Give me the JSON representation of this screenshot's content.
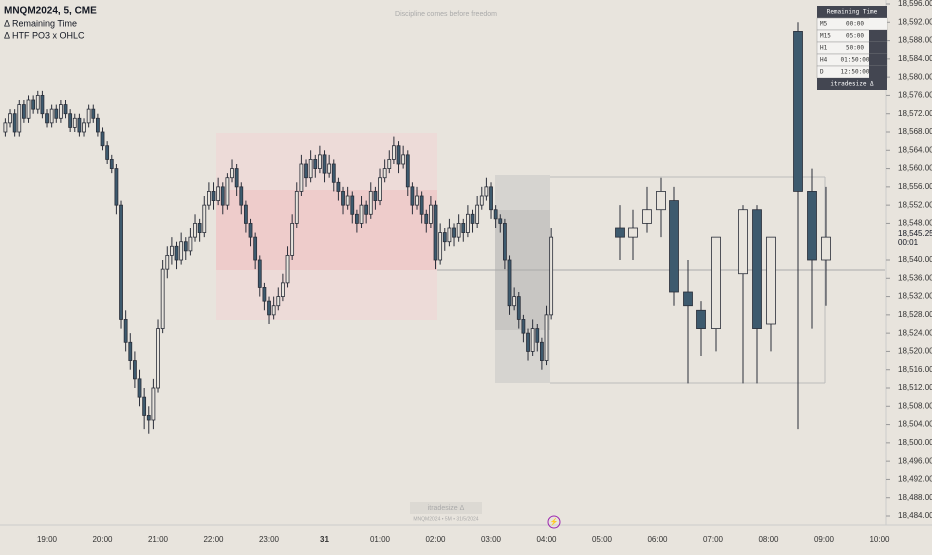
{
  "chart_data": {
    "type": "candlestick",
    "title": "MNQM2024, 5, CME",
    "indicators": [
      "Δ Remaining Time",
      "Δ HTF PO3 x OHLC"
    ],
    "watermark": "Discipline comes before freedom",
    "footer_brand": "itradesize Δ",
    "footer_info": "MNQM2024 • 5M • 31/5/2024",
    "current_price_label": "18,545.25",
    "countdown": "00:01",
    "ylim": [
      18484,
      18596
    ],
    "yticks": [
      {
        "value": 18596,
        "label": "18,596.00"
      },
      {
        "value": 18592,
        "label": "18,592.00"
      },
      {
        "value": 18588,
        "label": "18,588.00"
      },
      {
        "value": 18584,
        "label": "18,584.00"
      },
      {
        "value": 18580,
        "label": "18,580.00"
      },
      {
        "value": 18576,
        "label": "18,576.00"
      },
      {
        "value": 18572,
        "label": "18,572.00"
      },
      {
        "value": 18568,
        "label": "18,568.00"
      },
      {
        "value": 18564,
        "label": "18,564.00"
      },
      {
        "value": 18560,
        "label": "18,560.00"
      },
      {
        "value": 18556,
        "label": "18,556.00"
      },
      {
        "value": 18552,
        "label": "18,552.00"
      },
      {
        "value": 18548,
        "label": "18,548.00"
      },
      {
        "value": 18540,
        "label": "18,540.00"
      },
      {
        "value": 18536,
        "label": "18,536.00"
      },
      {
        "value": 18532,
        "label": "18,532.00"
      },
      {
        "value": 18528,
        "label": "18,528.00"
      },
      {
        "value": 18524,
        "label": "18,524.00"
      },
      {
        "value": 18520,
        "label": "18,520.00"
      },
      {
        "value": 18516,
        "label": "18,516.00"
      },
      {
        "value": 18512,
        "label": "18,512.00"
      },
      {
        "value": 18508,
        "label": "18,508.00"
      },
      {
        "value": 18504,
        "label": "18,504.00"
      },
      {
        "value": 18500,
        "label": "18,500.00"
      },
      {
        "value": 18496,
        "label": "18,496.00"
      },
      {
        "value": 18492,
        "label": "18,492.00"
      },
      {
        "value": 18488,
        "label": "18,488.00"
      },
      {
        "value": 18484,
        "label": "18,484.00"
      }
    ],
    "xticks": [
      "19:00",
      "20:00",
      "21:00",
      "22:00",
      "23:00",
      "31",
      "01:00",
      "02:00",
      "03:00",
      "04:00",
      "05:00",
      "06:00",
      "07:00",
      "08:00",
      "09:00",
      "10:00"
    ],
    "colors": {
      "up": "#e8e4dd",
      "down": "#3d5a6e",
      "wick": "#2a2e39"
    },
    "candles": [
      [
        18568,
        18571,
        18567,
        18570
      ],
      [
        18570,
        18573,
        18569,
        18572
      ],
      [
        18572,
        18573,
        18567,
        18568
      ],
      [
        18568,
        18575,
        18567,
        18574
      ],
      [
        18574,
        18575,
        18570,
        18571
      ],
      [
        18571,
        18576,
        18570,
        18575
      ],
      [
        18575,
        18576,
        18572,
        18573
      ],
      [
        18573,
        18577,
        18572,
        18576
      ],
      [
        18576,
        18577,
        18571,
        18572
      ],
      [
        18572,
        18573,
        18569,
        18570
      ],
      [
        18570,
        18574,
        18569,
        18573
      ],
      [
        18573,
        18574,
        18570,
        18571
      ],
      [
        18571,
        18575,
        18570,
        18574
      ],
      [
        18574,
        18575,
        18571,
        18572
      ],
      [
        18572,
        18573,
        18568,
        18569
      ],
      [
        18569,
        18572,
        18568,
        18571
      ],
      [
        18571,
        18572,
        18567,
        18568
      ],
      [
        18568,
        18571,
        18567,
        18570
      ],
      [
        18570,
        18574,
        18569,
        18573
      ],
      [
        18573,
        18574,
        18570,
        18571
      ],
      [
        18571,
        18572,
        18567,
        18568
      ],
      [
        18568,
        18569,
        18564,
        18565
      ],
      [
        18565,
        18566,
        18561,
        18562
      ],
      [
        18562,
        18563,
        18559,
        18560
      ],
      [
        18560,
        18561,
        18550,
        18552
      ],
      [
        18552,
        18553,
        18525,
        18527
      ],
      [
        18527,
        18529,
        18520,
        18522
      ],
      [
        18522,
        18524,
        18516,
        18518
      ],
      [
        18518,
        18520,
        18512,
        18514
      ],
      [
        18514,
        18516,
        18508,
        18510
      ],
      [
        18510,
        18512,
        18503,
        18506
      ],
      [
        18506,
        18508,
        18502,
        18505
      ],
      [
        18505,
        18514,
        18503,
        18512
      ],
      [
        18512,
        18527,
        18511,
        18525
      ],
      [
        18525,
        18540,
        18524,
        18538
      ],
      [
        18538,
        18543,
        18536,
        18541
      ],
      [
        18541,
        18545,
        18539,
        18543
      ],
      [
        18543,
        18544,
        18538,
        18540
      ],
      [
        18540,
        18546,
        18539,
        18544
      ],
      [
        18544,
        18545,
        18540,
        18542
      ],
      [
        18542,
        18547,
        18541,
        18545
      ],
      [
        18545,
        18550,
        18544,
        18548
      ],
      [
        18548,
        18549,
        18544,
        18546
      ],
      [
        18546,
        18554,
        18545,
        18552
      ],
      [
        18552,
        18557,
        18551,
        18555
      ],
      [
        18555,
        18557,
        18551,
        18553
      ],
      [
        18553,
        18558,
        18552,
        18556
      ],
      [
        18556,
        18557,
        18550,
        18552
      ],
      [
        18552,
        18559,
        18551,
        18558
      ],
      [
        18558,
        18562,
        18557,
        18560
      ],
      [
        18560,
        18561,
        18554,
        18556
      ],
      [
        18556,
        18557,
        18550,
        18552
      ],
      [
        18552,
        18553,
        18546,
        18548
      ],
      [
        18548,
        18549,
        18543,
        18545
      ],
      [
        18545,
        18546,
        18538,
        18540
      ],
      [
        18540,
        18541,
        18532,
        18534
      ],
      [
        18534,
        18535,
        18529,
        18531
      ],
      [
        18531,
        18532,
        18526,
        18528
      ],
      [
        18528,
        18532,
        18527,
        18530
      ],
      [
        18530,
        18534,
        18529,
        18532
      ],
      [
        18532,
        18537,
        18531,
        18535
      ],
      [
        18535,
        18543,
        18534,
        18541
      ],
      [
        18541,
        18550,
        18540,
        18548
      ],
      [
        18548,
        18557,
        18547,
        18555
      ],
      [
        18555,
        18563,
        18554,
        18561
      ],
      [
        18561,
        18562,
        18556,
        18558
      ],
      [
        18558,
        18564,
        18557,
        18562
      ],
      [
        18562,
        18563,
        18558,
        18560
      ],
      [
        18560,
        18565,
        18559,
        18563
      ],
      [
        18563,
        18564,
        18557,
        18559
      ],
      [
        18559,
        18563,
        18558,
        18561
      ],
      [
        18561,
        18562,
        18555,
        18557
      ],
      [
        18557,
        18558,
        18553,
        18555
      ],
      [
        18555,
        18556,
        18550,
        18552
      ],
      [
        18552,
        18556,
        18551,
        18554
      ],
      [
        18554,
        18555,
        18548,
        18550
      ],
      [
        18550,
        18551,
        18546,
        18548
      ],
      [
        18548,
        18554,
        18547,
        18552
      ],
      [
        18552,
        18553,
        18548,
        18550
      ],
      [
        18550,
        18557,
        18549,
        18555
      ],
      [
        18555,
        18556,
        18551,
        18553
      ],
      [
        18553,
        18560,
        18552,
        18558
      ],
      [
        18558,
        18562,
        18557,
        18560
      ],
      [
        18560,
        18564,
        18559,
        18562
      ],
      [
        18562,
        18567,
        18561,
        18565
      ],
      [
        18565,
        18566,
        18559,
        18561
      ],
      [
        18561,
        18565,
        18560,
        18563
      ],
      [
        18563,
        18564,
        18554,
        18556
      ],
      [
        18556,
        18557,
        18550,
        18552
      ],
      [
        18552,
        18556,
        18551,
        18554
      ],
      [
        18554,
        18555,
        18548,
        18550
      ],
      [
        18550,
        18551,
        18546,
        18548
      ],
      [
        18548,
        18554,
        18547,
        18552
      ],
      [
        18552,
        18553,
        18538,
        18540
      ],
      [
        18540,
        18548,
        18539,
        18546
      ],
      [
        18546,
        18547,
        18542,
        18544
      ],
      [
        18544,
        18549,
        18543,
        18547
      ],
      [
        18547,
        18548,
        18543,
        18545
      ],
      [
        18545,
        18550,
        18544,
        18548
      ],
      [
        18548,
        18549,
        18544,
        18546
      ],
      [
        18546,
        18552,
        18545,
        18550
      ],
      [
        18550,
        18551,
        18546,
        18548
      ],
      [
        18548,
        18554,
        18547,
        18552
      ],
      [
        18552,
        18556,
        18551,
        18554
      ],
      [
        18554,
        18558,
        18553,
        18556
      ],
      [
        18556,
        18557,
        18549,
        18551
      ],
      [
        18551,
        18552,
        18547,
        18549
      ],
      [
        18549,
        18550,
        18546,
        18548
      ],
      [
        18548,
        18549,
        18538,
        18540
      ],
      [
        18540,
        18541,
        18528,
        18530
      ],
      [
        18530,
        18534,
        18529,
        18532
      ],
      [
        18532,
        18533,
        18525,
        18527
      ],
      [
        18527,
        18528,
        18522,
        18524
      ],
      [
        18524,
        18525,
        18518,
        18520
      ],
      [
        18520,
        18527,
        18519,
        18525
      ],
      [
        18525,
        18526,
        18520,
        18522
      ],
      [
        18522,
        18523,
        18516,
        18518
      ],
      [
        18518,
        18530,
        18517,
        18528
      ],
      [
        18528,
        18547,
        18527,
        18545
      ]
    ],
    "htf_candles": [
      [
        18547,
        18552,
        18540,
        18545
      ],
      [
        18545,
        18551,
        18540,
        18547
      ],
      [
        18548,
        18556,
        18546,
        18551
      ],
      [
        18551,
        18558,
        18545,
        18555
      ],
      [
        18553,
        18556,
        18530,
        18533
      ],
      [
        18533,
        18540,
        18513,
        18530
      ],
      [
        18529,
        18531,
        18519,
        18525
      ],
      [
        18525,
        18545,
        18520,
        18545
      ],
      [
        18537,
        18552,
        18513,
        18551
      ],
      [
        18551,
        18552,
        18513,
        18525
      ],
      [
        18526,
        18545,
        18520,
        18545
      ],
      [
        18590,
        18592,
        18503,
        18555
      ],
      [
        18555,
        18560,
        18525,
        18540
      ],
      [
        18540,
        18556,
        18530,
        18545
      ]
    ],
    "remaining_time": {
      "title": "Remaining Time",
      "rows": [
        [
          "M5",
          "00:00"
        ],
        [
          "M15",
          "05:00"
        ],
        [
          "H1",
          "50:00"
        ],
        [
          "H4",
          "01:50:00"
        ],
        [
          "D",
          "12:50:00"
        ]
      ],
      "footer": "itradesize Δ"
    }
  }
}
